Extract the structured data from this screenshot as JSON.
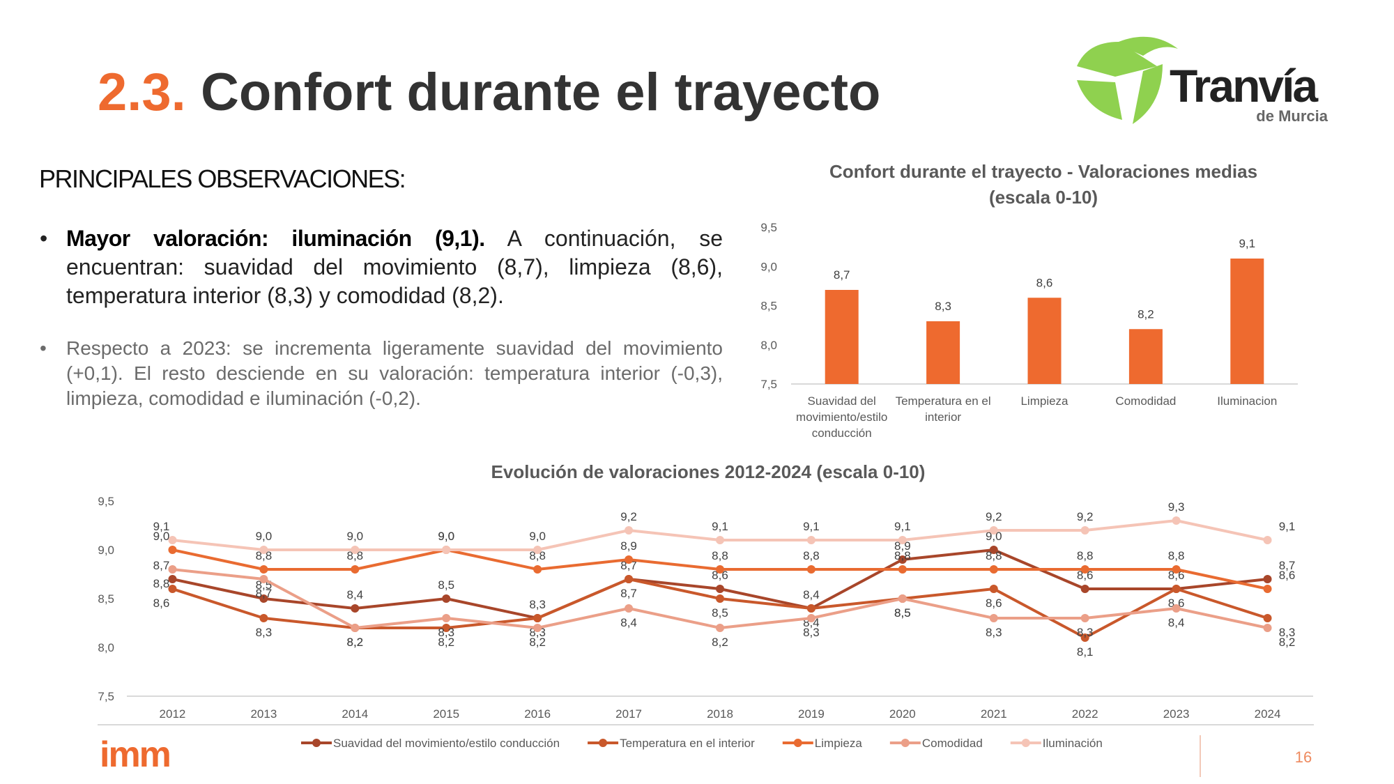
{
  "header": {
    "number": "2.3.",
    "title": "Confort durante el trayecto"
  },
  "logo": {
    "name": "Tranvía",
    "sub": "de Murcia"
  },
  "observations": {
    "heading": "PRINCIPALES OBSERVACIONES:",
    "bullets": [
      {
        "bold": "Mayor valoración: iluminación (9,1).",
        "text": "A continuación, se encuentran: suavidad del movimiento (8,7), limpieza (8,6), temperatura interior (8,3) y comodidad (8,2)."
      },
      {
        "text": "Respecto a 2023: se incrementa ligeramente suavidad del movimiento (+0,1). El resto desciende en su valoración: temperatura interior (-0,3), limpieza, comodidad e iluminación (-0,2)."
      }
    ]
  },
  "chart_data": [
    {
      "type": "bar",
      "title": [
        "Confort durante el trayecto - Valoraciones medias",
        "(escala 0-10)"
      ],
      "categories": [
        "Suavidad del movimiento/estilo conducción",
        "Temperatura en el interior",
        "Limpieza",
        "Comodidad",
        "Iluminacion"
      ],
      "values": [
        8.7,
        8.3,
        8.6,
        8.2,
        9.1
      ],
      "value_labels": [
        "8,7",
        "8,3",
        "8,6",
        "8,2",
        "9,1"
      ],
      "color": "#ee6a2f",
      "ylim": [
        7.5,
        9.5
      ],
      "yticks": [
        {
          "value": 7.5,
          "label": "7,5"
        },
        {
          "value": 8,
          "label": "8,0"
        },
        {
          "value": 8.5,
          "label": "8,5"
        },
        {
          "value": 9,
          "label": "9,0"
        },
        {
          "value": 9.5,
          "label": "9,5"
        }
      ],
      "grid": false
    },
    {
      "type": "line",
      "title": "Evolución de valoraciones 2012-2024 (escala 0-10)",
      "categories": [
        "2012",
        "2013",
        "2014",
        "2015",
        "2016",
        "2017",
        "2018",
        "2019",
        "2020",
        "2021",
        "2022",
        "2023",
        "2024"
      ],
      "series": [
        {
          "name": "Suavidad del movimiento/estilo conducción",
          "color": "#a8462a",
          "values": [
            8.7,
            8.5,
            8.4,
            8.5,
            8.3,
            8.7,
            8.6,
            8.4,
            8.9,
            9.0,
            8.6,
            8.6,
            8.7
          ],
          "value_labels": [
            "8,7",
            "8,5",
            "8,4",
            "8,5",
            "8,3",
            "8,7",
            "8,6",
            "8,4",
            "8,9",
            "9,0",
            "8,6",
            "8,6",
            "8,7"
          ]
        },
        {
          "name": "Temperatura en el interior",
          "color": "#c9582b",
          "values": [
            8.6,
            8.3,
            8.2,
            8.2,
            8.3,
            8.7,
            8.5,
            8.4,
            8.5,
            8.6,
            8.1,
            8.6,
            8.3
          ],
          "value_labels": [
            "8,6",
            "8,3",
            "8,2",
            "8,2",
            "8,3",
            "8,7",
            "8,5",
            "8,4",
            "8,5",
            "8,6",
            "8,1",
            "8,6",
            "8,3"
          ]
        },
        {
          "name": "Limpieza",
          "color": "#e96b31",
          "values": [
            9.0,
            8.8,
            8.8,
            9.0,
            8.8,
            8.9,
            8.8,
            8.8,
            8.8,
            8.8,
            8.8,
            8.8,
            8.6
          ],
          "value_labels": [
            "9,0",
            "8,8",
            "8,8",
            "9,0",
            "8,8",
            "8,9",
            "8,8",
            "8,8",
            "8,8",
            "8,8",
            "8,8",
            "8,8",
            "8,6"
          ]
        },
        {
          "name": "Comodidad",
          "color": "#eb9f88",
          "values": [
            8.8,
            8.7,
            8.2,
            8.3,
            8.2,
            8.4,
            8.2,
            8.3,
            8.5,
            8.3,
            8.3,
            8.4,
            8.2
          ],
          "value_labels": [
            "8,8",
            "8,7",
            "8,2",
            "8,3",
            "8,2",
            "8,4",
            "8,2",
            "8,3",
            "8,5",
            "8,3",
            "8,3",
            "8,4",
            "8,2"
          ]
        },
        {
          "name": "Iluminación",
          "color": "#f5c4b6",
          "values": [
            9.1,
            9.0,
            9.0,
            9.0,
            9.0,
            9.2,
            9.1,
            9.1,
            9.1,
            9.2,
            9.2,
            9.3,
            9.1
          ],
          "value_labels": [
            "9,1",
            "9,0",
            "9,0",
            "9,0",
            "9,0",
            "9,2",
            "9,1",
            "9,1",
            "9,1",
            "9,2",
            "9,2",
            "9,3",
            "9,1"
          ]
        }
      ],
      "ylim": [
        7.5,
        9.5
      ],
      "yticks": [
        {
          "value": 7.5,
          "label": "7,5"
        },
        {
          "value": 8,
          "label": "8,0"
        },
        {
          "value": 8.5,
          "label": "8,5"
        },
        {
          "value": 9,
          "label": "9,0"
        },
        {
          "value": 9.5,
          "label": "9,5"
        }
      ],
      "grid": false,
      "legend": "bottom"
    }
  ],
  "footer": {
    "brand": "imm",
    "page": "16"
  }
}
